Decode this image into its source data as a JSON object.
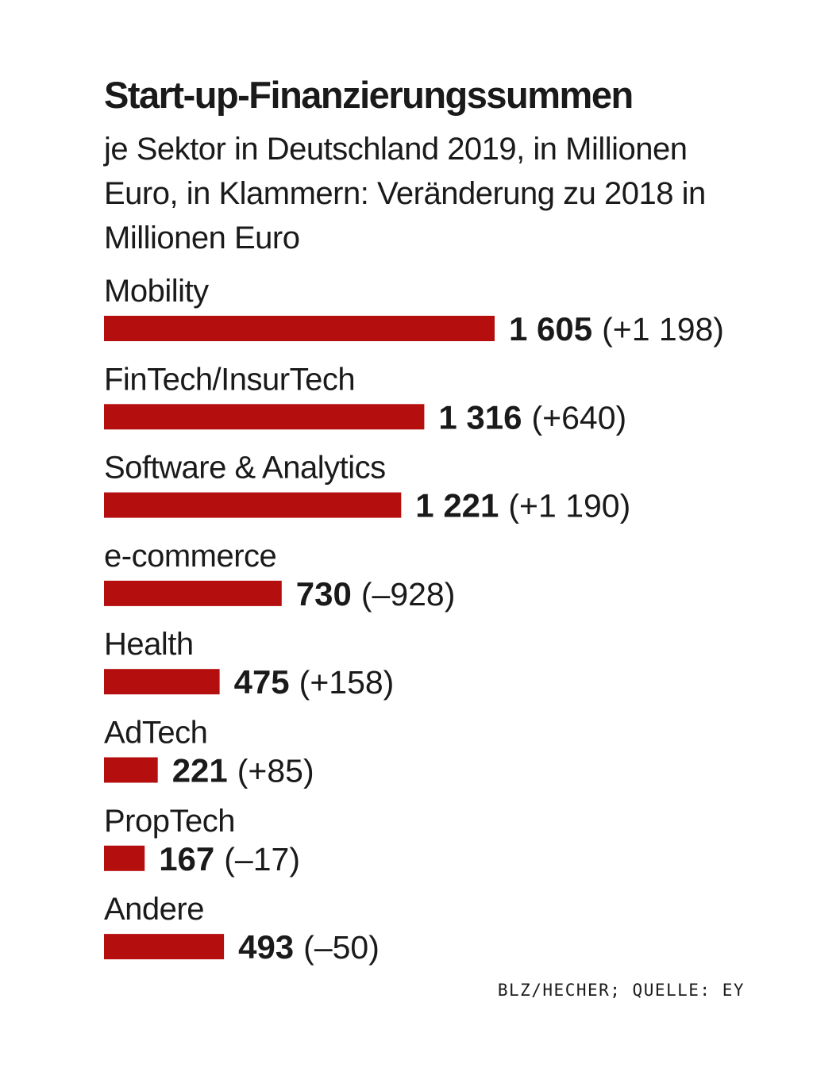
{
  "chart_data": {
    "type": "bar",
    "orientation": "horizontal",
    "title": "Start-up-Finanzierungssummen",
    "subtitle": "je Sektor in Deutschland 2019, in Millionen Euro, in Klammern: Veränderung zu 2018 in Millionen Euro",
    "categories": [
      "Mobility",
      "FinTech/InsurTech",
      "Software & Analytics",
      "e-commerce",
      "Health",
      "AdTech",
      "PropTech",
      "Andere"
    ],
    "values": [
      1605,
      1316,
      1221,
      730,
      475,
      221,
      167,
      493
    ],
    "changes": [
      1198,
      640,
      1190,
      -928,
      158,
      85,
      -17,
      -50
    ],
    "value_labels": [
      "1 605",
      "1 316",
      "1 221",
      "730",
      "475",
      "221",
      "167",
      "493"
    ],
    "change_labels": [
      "(+1 198)",
      "(+640)",
      "(+1 190)",
      "(–928)",
      "(+158)",
      "(+85)",
      "(–17)",
      "(–50)"
    ],
    "bar_color": "#b50e0e",
    "xlim": [
      0,
      1605
    ],
    "grid": false,
    "legend": "none",
    "source": "BLZ/HECHER; QUELLE: EY"
  }
}
